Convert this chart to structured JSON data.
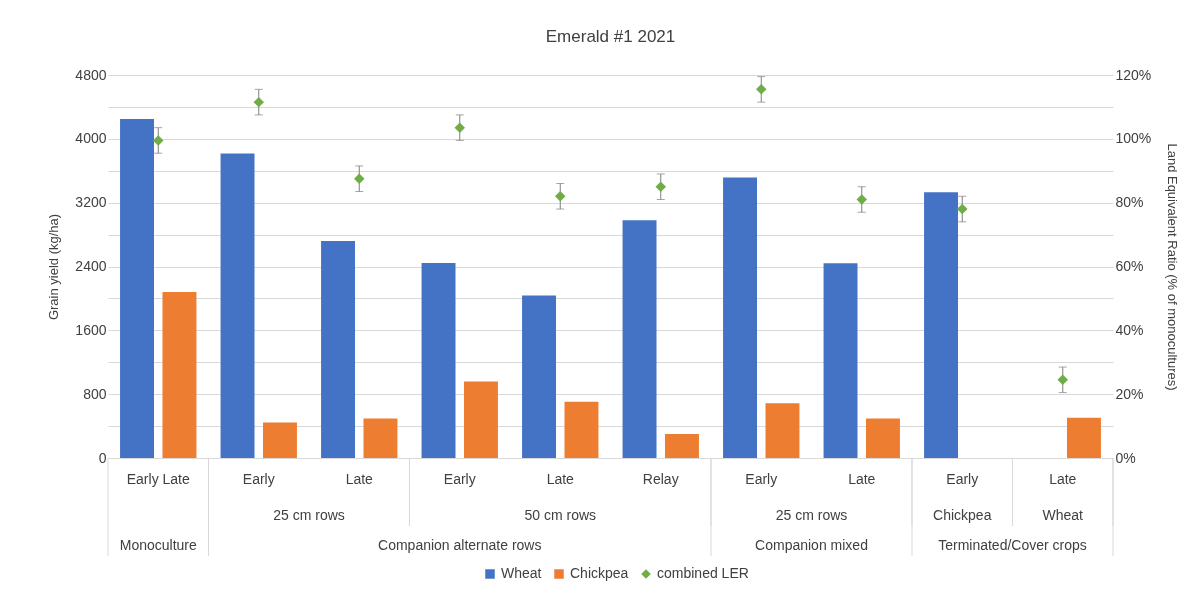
{
  "chart_data": {
    "type": "bar",
    "title": "Emerald #1 2021",
    "ylabel": "Grain yield (kg/ha)",
    "y2label": "Land Equivalent Ratio (% of monocultures)",
    "categories": [
      "Early Late",
      "Early",
      "Late",
      "Early",
      "Late",
      "Relay",
      "Early",
      "Late",
      "Early",
      "Late"
    ],
    "series": [
      {
        "name": "Wheat",
        "color": "#4472c4",
        "values": [
          4250,
          3815,
          2720,
          2445,
          2035,
          2980,
          3515,
          2440,
          3330,
          null
        ]
      },
      {
        "name": "Chickpea",
        "color": "#ed7d31",
        "values": [
          2080,
          445,
          495,
          960,
          705,
          300,
          685,
          495,
          null,
          505
        ]
      },
      {
        "name": "combined LER",
        "type": "scatter",
        "axis": "y2",
        "color": "#70ad47",
        "values": [
          99.5,
          111.5,
          87.5,
          103.5,
          82,
          85,
          115.5,
          81,
          78,
          24.5
        ],
        "errors": [
          4,
          4,
          4,
          4,
          4,
          4,
          4,
          4,
          4,
          4
        ]
      }
    ],
    "ylim": [
      0,
      4800
    ],
    "yticks": [
      0,
      {
        "value": 400,
        "label": null
      },
      800,
      {
        "value": 1200,
        "label": null
      },
      1600,
      {
        "value": 2000,
        "label": null
      },
      2400,
      {
        "value": 2800,
        "label": null
      },
      3200,
      {
        "value": 3600,
        "label": null
      },
      4000,
      {
        "value": 4400,
        "label": null
      },
      4800
    ],
    "y2lim": [
      0,
      120
    ],
    "y2ticks": [
      {
        "value": 0,
        "label": "0%"
      },
      {
        "value": 20,
        "label": "20%"
      },
      {
        "value": 40,
        "label": "40%"
      },
      {
        "value": 60,
        "label": "60%"
      },
      {
        "value": 80,
        "label": "80%"
      },
      {
        "value": 100,
        "label": "100%"
      },
      {
        "value": 120,
        "label": "120%"
      }
    ],
    "annotations": [
      "25 cm rows",
      "50 cm rows",
      "25 cm rows",
      "Chickpea",
      "Wheat",
      "Monoculture",
      "Companion alternate rows",
      "Companion mixed",
      "Terminated/Cover crops"
    ],
    "grid": "y",
    "legend": "bottom",
    "marker": "diamond"
  }
}
